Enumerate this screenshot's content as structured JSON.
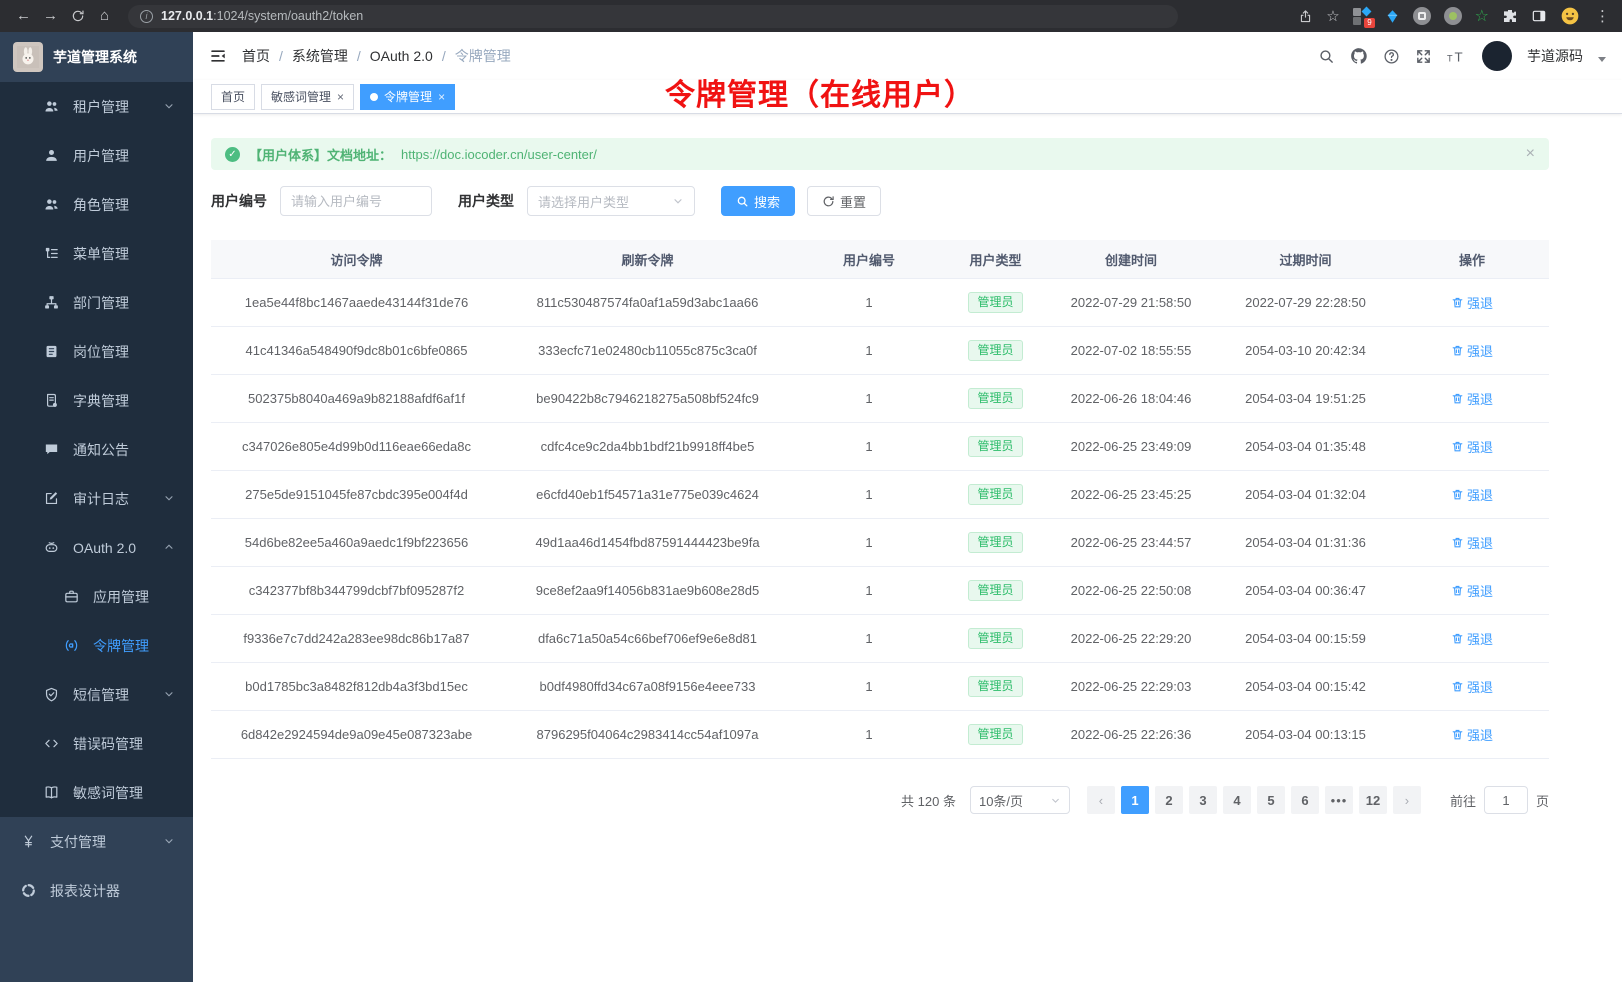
{
  "browser": {
    "url_host": "127.0.0.1",
    "url_path": ":1024/system/oauth2/token",
    "extension_badge": "9"
  },
  "sidebar": {
    "logo": "芋道管理系统",
    "menu": [
      {
        "key": "tenant-management",
        "label": "租户管理",
        "icon": "users",
        "level": 2,
        "arrow": "down"
      },
      {
        "key": "user-management",
        "label": "用户管理",
        "icon": "user",
        "level": 2
      },
      {
        "key": "role-management",
        "label": "角色管理",
        "icon": "users",
        "level": 2
      },
      {
        "key": "menu-management",
        "label": "菜单管理",
        "icon": "menu-tree",
        "level": 2
      },
      {
        "key": "dept-management",
        "label": "部门管理",
        "icon": "org-chart",
        "level": 2
      },
      {
        "key": "post-management",
        "label": "岗位管理",
        "icon": "id-badge",
        "level": 2
      },
      {
        "key": "dict-management",
        "label": "字典管理",
        "icon": "dictionary",
        "level": 2
      },
      {
        "key": "notice-announcement",
        "label": "通知公告",
        "icon": "announcement",
        "level": 2
      },
      {
        "key": "audit-log",
        "label": "审计日志",
        "icon": "audit-log",
        "level": 2,
        "arrow": "down"
      },
      {
        "key": "oauth2",
        "label": "OAuth 2.0",
        "icon": "robot",
        "level": 2,
        "arrow": "up"
      },
      {
        "key": "oauth2-application",
        "label": "应用管理",
        "icon": "briefcase",
        "level": 3
      },
      {
        "key": "oauth2-token",
        "label": "令牌管理",
        "icon": "token-signal",
        "level": 3,
        "active": true
      },
      {
        "key": "sms-management",
        "label": "短信管理",
        "icon": "shield-check",
        "level": 2,
        "arrow": "down"
      },
      {
        "key": "error-code-management",
        "label": "错误码管理",
        "icon": "code-brackets",
        "level": 2
      },
      {
        "key": "sensitive-word",
        "label": "敏感词管理",
        "icon": "open-book",
        "level": 2
      },
      {
        "key": "pay-management",
        "label": "支付管理",
        "icon": "yen",
        "level": 1,
        "arrow": "down"
      },
      {
        "key": "report-designer",
        "label": "报表设计器",
        "icon": "segmented-circle",
        "level": 1
      }
    ]
  },
  "header": {
    "breadcrumb": [
      "首页",
      "系统管理",
      "OAuth 2.0",
      "令牌管理"
    ],
    "user": "芋道源码"
  },
  "tabs": [
    {
      "key": "home",
      "label": "首页",
      "closable": false,
      "active": false
    },
    {
      "key": "sensitive-word",
      "label": "敏感词管理",
      "closable": true,
      "active": false
    },
    {
      "key": "oauth2-token",
      "label": "令牌管理",
      "closable": true,
      "active": true
    }
  ],
  "annotation": {
    "text": "令牌管理（在线用户）"
  },
  "alert": {
    "text": "【用户体系】文档地址：",
    "link": "https://doc.iocoder.cn/user-center/"
  },
  "filters": {
    "user_id_label": "用户编号",
    "user_id_placeholder": "请输入用户编号",
    "user_type_label": "用户类型",
    "user_type_placeholder": "请选择用户类型",
    "search_label": "搜索",
    "reset_label": "重置"
  },
  "table": {
    "columns": [
      "访问令牌",
      "刷新令牌",
      "用户编号",
      "用户类型",
      "创建时间",
      "过期时间",
      "操作"
    ],
    "rows": [
      [
        "1ea5e44f8bc1467aaede43144f31de76",
        "811c530487574fa0af1a59d3abc1aa66",
        "1",
        "管理员",
        "2022-07-29 21:58:50",
        "2022-07-29 22:28:50",
        "强退"
      ],
      [
        "41c41346a548490f9dc8b01c6bfe0865",
        "333ecfc71e02480cb11055c875c3ca0f",
        "1",
        "管理员",
        "2022-07-02 18:55:55",
        "2054-03-10 20:42:34",
        "强退"
      ],
      [
        "502375b8040a469a9b82188afdf6af1f",
        "be90422b8c7946218275a508bf524fc9",
        "1",
        "管理员",
        "2022-06-26 18:04:46",
        "2054-03-04 19:51:25",
        "强退"
      ],
      [
        "c347026e805e4d99b0d116eae66eda8c",
        "cdfc4ce9c2da4bb1bdf21b9918ff4be5",
        "1",
        "管理员",
        "2022-06-25 23:49:09",
        "2054-03-04 01:35:48",
        "强退"
      ],
      [
        "275e5de9151045fe87cbdc395e004f4d",
        "e6cfd40eb1f54571a31e775e039c4624",
        "1",
        "管理员",
        "2022-06-25 23:45:25",
        "2054-03-04 01:32:04",
        "强退"
      ],
      [
        "54d6be82ee5a460a9aedc1f9bf223656",
        "49d1aa46d1454fbd87591444423be9fa",
        "1",
        "管理员",
        "2022-06-25 23:44:57",
        "2054-03-04 01:31:36",
        "强退"
      ],
      [
        "c342377bf8b344799dcbf7bf095287f2",
        "9ce8ef2aa9f14056b831ae9b608e28d5",
        "1",
        "管理员",
        "2022-06-25 22:50:08",
        "2054-03-04 00:36:47",
        "强退"
      ],
      [
        "f9336e7c7dd242a283ee98dc86b17a87",
        "dfa6c71a50a54c66bef706ef9e6e8d81",
        "1",
        "管理员",
        "2022-06-25 22:29:20",
        "2054-03-04 00:15:59",
        "强退"
      ],
      [
        "b0d1785bc3a8482f812db4a3f3bd15ec",
        "b0df4980ffd34c67a08f9156e4eee733",
        "1",
        "管理员",
        "2022-06-25 22:29:03",
        "2054-03-04 00:15:42",
        "强退"
      ],
      [
        "6d842e2924594de9a09e45e087323abe",
        "8796295f04064c2983414cc54af1097a",
        "1",
        "管理员",
        "2022-06-25 22:26:36",
        "2054-03-04 00:13:15",
        "强退"
      ]
    ]
  },
  "pagination": {
    "total": "共 120 条",
    "page_size": "10条/页",
    "pages": [
      "1",
      "2",
      "3",
      "4",
      "5",
      "6",
      "...",
      "12"
    ],
    "active_page": "1",
    "prev": "‹",
    "next": "›",
    "goto_label": "前往",
    "goto_value": "1",
    "goto_unit": "页"
  },
  "colors": {
    "accent_blue": "#409eff",
    "sidebar_bg": "#304156",
    "submenu_bg": "#1f2d3d",
    "alert_green_bg": "#e9f9ee",
    "alert_green_text": "#4fb374",
    "badge_green_text": "#2ebd6b",
    "annotation_red": "#f01212"
  }
}
